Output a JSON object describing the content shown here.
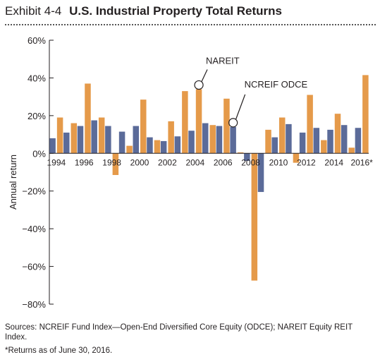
{
  "exhibit_label": "Exhibit 4-4",
  "chart_data": {
    "type": "bar",
    "title": "U.S. Industrial Property Total Returns",
    "ylabel": "Annual return",
    "xlabel": "",
    "ylim": [
      -80,
      60
    ],
    "yticks": [
      60,
      40,
      20,
      0,
      -20,
      -40,
      -60,
      -80
    ],
    "ytick_labels": [
      "60%",
      "40%",
      "20%",
      "0%",
      "−20%",
      "−40%",
      "−60%",
      "−80%"
    ],
    "categories": [
      "1994",
      "1995",
      "1996",
      "1997",
      "1998",
      "1999",
      "2000",
      "2001",
      "2002",
      "2003",
      "2004",
      "2005",
      "2006",
      "2007",
      "2008",
      "2009",
      "2010",
      "2011",
      "2012",
      "2013",
      "2014",
      "2015",
      "2016*"
    ],
    "xtick_labels": [
      "1994",
      "",
      "1996",
      "",
      "1998",
      "",
      "2000",
      "",
      "2002",
      "",
      "2004",
      "",
      "2006",
      "",
      "2008",
      "",
      "2010",
      "",
      "2012",
      "",
      "2014",
      "",
      "2016*"
    ],
    "series": [
      {
        "name": "NCREIF ODCE",
        "color": "#5b6b99",
        "values": [
          8,
          11,
          14.5,
          17.5,
          14.5,
          11.5,
          14.5,
          8.5,
          6.5,
          9,
          12,
          16,
          14.5,
          14,
          -4,
          -20.5,
          8.5,
          15.5,
          11,
          13.5,
          12.5,
          15,
          13.5
        ]
      },
      {
        "name": "NAREIT",
        "color": "#e59a4a",
        "values": [
          19,
          16,
          37,
          19,
          -11.5,
          4,
          28.5,
          7,
          17,
          33,
          34,
          15,
          29,
          0.5,
          -67.5,
          12.5,
          19,
          -5,
          31,
          7,
          21,
          3,
          41.5
        ]
      }
    ],
    "annotations": [
      {
        "text": "NAREIT",
        "series": "NAREIT",
        "category": "2004"
      },
      {
        "text": "NCREIF ODCE",
        "series": "NCREIF ODCE",
        "category": "2007"
      }
    ],
    "grid": false,
    "legend": "none"
  },
  "notes": {
    "sources": "Sources: NCREIF Fund Index—Open-End Diversified Core Equity (ODCE); NAREIT Equity REIT Index.",
    "footnote": "*Returns as of June 30, 2016."
  }
}
